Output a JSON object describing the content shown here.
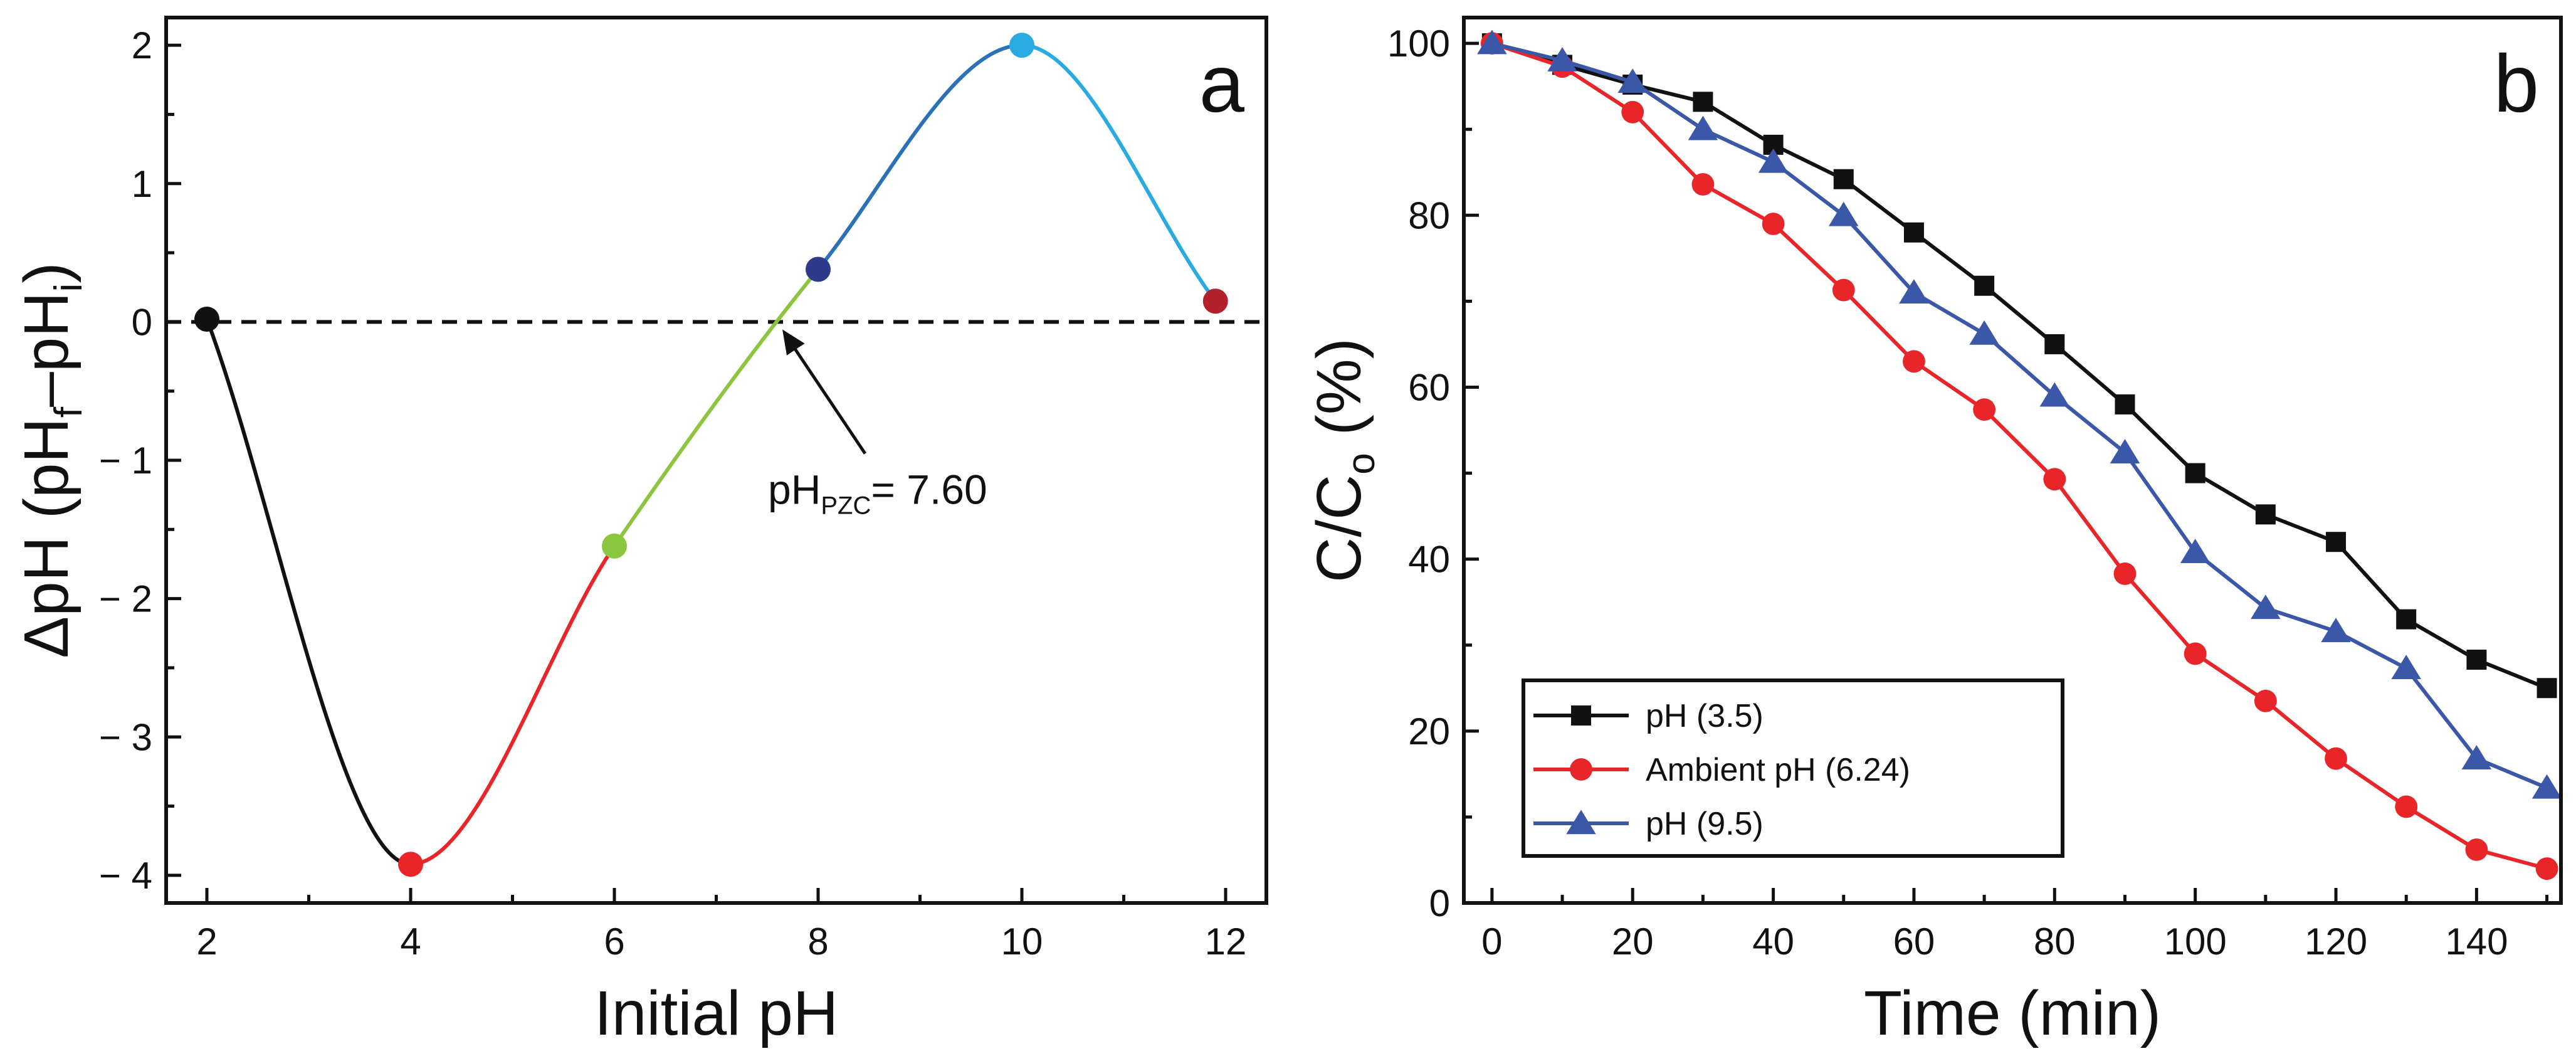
{
  "chart_data": [
    {
      "type": "line",
      "panel": "a",
      "xlabel": "Initial pH",
      "ylabel": "ΔpH (pH",
      "ylabel_sub_f": "f",
      "ylabel_mid": "–pH",
      "ylabel_sub_i": "i",
      "ylabel_end": ")",
      "xlim": [
        1.6,
        12.4
      ],
      "ylim": [
        -4.2,
        2.2
      ],
      "xticks": [
        2,
        4,
        6,
        8,
        10,
        12
      ],
      "xtick_labels": [
        "2",
        "4",
        "6",
        "8",
        "10",
        "12"
      ],
      "yticks": [
        -4,
        -3,
        -2,
        -1,
        0,
        1,
        2
      ],
      "ytick_labels": [
        "− 4",
        "− 3",
        "− 2",
        "− 1",
        "0",
        "1",
        "2"
      ],
      "points": [
        {
          "x": 2,
          "y": 0.02,
          "color": "#111111"
        },
        {
          "x": 4,
          "y": -3.92,
          "color": "#e8262a"
        },
        {
          "x": 6,
          "y": -1.62,
          "color": "#8cc63e"
        },
        {
          "x": 8,
          "y": 0.38,
          "color": "#2e3a8c"
        },
        {
          "x": 10,
          "y": 2.0,
          "color": "#29abe2"
        },
        {
          "x": 11.9,
          "y": 0.15,
          "color": "#b5202e"
        }
      ],
      "zero_line": {
        "y": 0,
        "style": "dashed"
      },
      "annotation": {
        "text_main": "pH",
        "text_sub": "PZC",
        "text_end": "= 7.60",
        "target_x": 7.6,
        "target_y": 0
      }
    },
    {
      "type": "line",
      "panel": "b",
      "xlabel": "Time (min)",
      "ylabel": "C/C",
      "ylabel_sub": "o",
      "ylabel_end": " (%)",
      "xlim": [
        -4,
        152
      ],
      "ylim": [
        0,
        103
      ],
      "xticks": [
        0,
        20,
        40,
        60,
        80,
        100,
        120,
        140
      ],
      "xtick_labels": [
        "0",
        "20",
        "40",
        "60",
        "80",
        "100",
        "120",
        "140"
      ],
      "yticks": [
        0,
        20,
        40,
        60,
        80,
        100
      ],
      "ytick_labels": [
        "0",
        "20",
        "40",
        "60",
        "80",
        "100"
      ],
      "x": [
        0,
        10,
        20,
        30,
        40,
        50,
        60,
        70,
        80,
        90,
        100,
        110,
        120,
        130,
        140,
        150
      ],
      "series": [
        {
          "name": "pH (3.5)",
          "color": "#111111",
          "marker": "square",
          "values": [
            100,
            97.5,
            95.2,
            93.2,
            88.2,
            84.2,
            78.0,
            71.8,
            65.0,
            58.0,
            50.0,
            45.2,
            42.0,
            33.0,
            28.3,
            25.0
          ]
        },
        {
          "name": "Ambient pH (6.24)",
          "color": "#e8262a",
          "marker": "circle",
          "values": [
            100,
            97.3,
            92.0,
            83.6,
            79.0,
            71.3,
            63.0,
            57.4,
            49.3,
            38.3,
            29.0,
            23.5,
            16.8,
            11.2,
            6.2,
            4.0
          ]
        },
        {
          "name": "pH (9.5)",
          "color": "#3b58a8",
          "marker": "triangle",
          "values": [
            100,
            98.0,
            95.5,
            90.0,
            86.2,
            80.0,
            71.0,
            66.2,
            59.0,
            52.4,
            40.8,
            34.3,
            31.6,
            27.3,
            16.8,
            13.4
          ]
        }
      ]
    }
  ]
}
